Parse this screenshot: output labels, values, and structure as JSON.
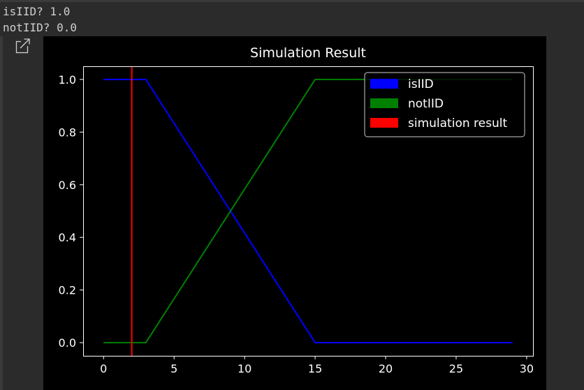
{
  "output": {
    "line1": "isIID? 1.0",
    "line2": "notIID? 0.0"
  },
  "icons": {
    "expand": "expand-output-icon"
  },
  "chart_data": {
    "type": "line",
    "title": "Simulation Result",
    "xlabel": "",
    "ylabel": "",
    "xlim": [
      -1.45,
      30.45
    ],
    "ylim": [
      -0.05,
      1.05
    ],
    "xticks": [
      0,
      5,
      10,
      15,
      20,
      25,
      30
    ],
    "yticks": [
      0.0,
      0.2,
      0.4,
      0.6,
      0.8,
      1.0
    ],
    "xtick_labels": [
      "0",
      "5",
      "10",
      "15",
      "20",
      "25",
      "30"
    ],
    "ytick_labels": [
      "0.0",
      "0.2",
      "0.4",
      "0.6",
      "0.8",
      "1.0"
    ],
    "grid": false,
    "legend_position": "top-right",
    "series": [
      {
        "name": "isIID",
        "color": "#0000ff",
        "x": [
          0,
          3,
          15,
          29
        ],
        "y": [
          1,
          1,
          0,
          0
        ]
      },
      {
        "name": "notIID",
        "color": "#008000",
        "x": [
          0,
          3,
          15,
          29
        ],
        "y": [
          0,
          0,
          1,
          1
        ]
      }
    ],
    "vlines": [
      {
        "name": "simulation result",
        "color": "#ff0000",
        "x": 2
      }
    ],
    "legend": [
      {
        "label": "isIID",
        "color": "#0000ff"
      },
      {
        "label": "notIID",
        "color": "#008000"
      },
      {
        "label": "simulation result",
        "color": "#ff0000"
      }
    ]
  }
}
